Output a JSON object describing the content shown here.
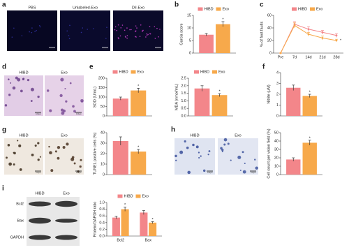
{
  "panel_labels": [
    "a",
    "b",
    "c",
    "d",
    "e",
    "f",
    "g",
    "h",
    "i"
  ],
  "image_captions": {
    "a": [
      "PBS",
      "Unlabeled-Exo",
      "DiI-Exo"
    ],
    "d": [
      "HIBD",
      "Exo"
    ],
    "g": [
      "HIBD",
      "Exo"
    ],
    "h": [
      "HIBD",
      "Exo"
    ]
  },
  "scale_bar": "100μm",
  "blot": {
    "samples": [
      "HIBD",
      "Exo"
    ],
    "proteins": [
      "Bcl2",
      "Bax",
      "GAPDH"
    ]
  },
  "chart_data": [
    {
      "type": "bar",
      "ylabel": "Garcia score",
      "categories": [
        null
      ],
      "legend": "top",
      "ylim": [
        0,
        15
      ],
      "yticks": [
        0,
        5,
        10,
        15
      ],
      "series": [
        {
          "name": "HIBD",
          "color": "#f3868a",
          "values": [
            7.3
          ],
          "errors": [
            0.5
          ]
        },
        {
          "name": "Exo",
          "color": "#f7a94b",
          "values": [
            11.5
          ],
          "errors": [
            1.0
          ],
          "annotations": [
            "*"
          ]
        }
      ]
    },
    {
      "type": "line",
      "ylabel": "% of foot faults",
      "categories": [
        "Pre",
        "7d",
        "14d",
        "21d",
        "28d"
      ],
      "legend": "top",
      "ylim": [
        0,
        60
      ],
      "yticks": [
        0,
        20,
        40,
        60
      ],
      "series": [
        {
          "name": "HIBD",
          "color": "#f3868a",
          "values": [
            0,
            46,
            38,
            33,
            28
          ],
          "errors": [
            0,
            4,
            4,
            3,
            3
          ]
        },
        {
          "name": "Exo",
          "color": "#f7a94b",
          "values": [
            0,
            44,
            30,
            24,
            20
          ],
          "errors": [
            0,
            4,
            3,
            3,
            2
          ],
          "annotations": [
            null,
            null,
            null,
            null,
            "*"
          ]
        }
      ]
    },
    {
      "type": "bar",
      "ylabel": "SOD (U/mL)",
      "categories": [
        null
      ],
      "legend": "top",
      "ylim": [
        0,
        200
      ],
      "yticks": [
        0,
        50,
        100,
        150,
        200
      ],
      "series": [
        {
          "name": "HIBD",
          "color": "#f3868a",
          "values": [
            92
          ],
          "errors": [
            8
          ]
        },
        {
          "name": "Exo",
          "color": "#f7a94b",
          "values": [
            135
          ],
          "errors": [
            12
          ],
          "annotations": [
            "*"
          ]
        }
      ]
    },
    {
      "type": "bar",
      "ylabel": "MDA (nmol/mL)",
      "categories": [
        null
      ],
      "legend": "top",
      "ylim": [
        0,
        2.5
      ],
      "yticks": [
        {
          "value": 0,
          "label": "0.0"
        },
        {
          "value": 0.5,
          "label": "0.5"
        },
        {
          "value": 1,
          "label": "1.0"
        },
        {
          "value": 1.5,
          "label": "1.5"
        },
        {
          "value": 2,
          "label": "2.0"
        },
        {
          "value": 2.5,
          "label": "2.5"
        }
      ],
      "series": [
        {
          "name": "HIBD",
          "color": "#f3868a",
          "values": [
            1.82
          ],
          "errors": [
            0.18
          ]
        },
        {
          "name": "Exo",
          "color": "#f7a94b",
          "values": [
            1.38
          ],
          "errors": [
            0.1
          ],
          "annotations": [
            "*"
          ]
        }
      ]
    },
    {
      "type": "bar",
      "ylabel": "Nitrite (μM)",
      "categories": [
        null
      ],
      "ylim": [
        0,
        4
      ],
      "yticks": [
        0,
        1,
        2,
        3,
        4
      ],
      "series": [
        {
          "name": "HIBD",
          "color": "#f3868a",
          "values": [
            2.6
          ],
          "errors": [
            0.25
          ]
        },
        {
          "name": "Exo",
          "color": "#f7a94b",
          "values": [
            1.85
          ],
          "errors": [
            0.15
          ],
          "annotations": [
            "*"
          ]
        }
      ]
    },
    {
      "type": "bar",
      "ylabel": "TUNEL positive cells (%)",
      "categories": [
        null
      ],
      "ylim": [
        0,
        40
      ],
      "yticks": [
        0,
        10,
        20,
        30,
        40
      ],
      "series": [
        {
          "name": "HIBD",
          "color": "#f3868a",
          "values": [
            32
          ],
          "errors": [
            4
          ]
        },
        {
          "name": "Exo",
          "color": "#f7a94b",
          "values": [
            22
          ],
          "errors": [
            2
          ],
          "annotations": [
            "*"
          ]
        }
      ]
    },
    {
      "type": "bar",
      "ylabel": "Cell count per vision field (%)",
      "categories": [
        null
      ],
      "ylim": [
        0,
        50
      ],
      "yticks": [
        0,
        10,
        20,
        30,
        40,
        50
      ],
      "series": [
        {
          "name": "HIBD",
          "color": "#f3868a",
          "values": [
            18
          ],
          "errors": [
            2
          ]
        },
        {
          "name": "Exo",
          "color": "#f7a94b",
          "values": [
            38
          ],
          "errors": [
            3
          ],
          "annotations": [
            "*"
          ]
        }
      ]
    },
    {
      "type": "bar",
      "ylabel": "Protein/GAPDH ratio",
      "categories": [
        "Bcl2",
        "Bax"
      ],
      "legend": "top",
      "ylim": [
        0,
        1
      ],
      "yticks": [
        {
          "value": 0,
          "label": "0.0"
        },
        {
          "value": 0.2,
          "label": "0.2"
        },
        {
          "value": 0.4,
          "label": "0.4"
        },
        {
          "value": 0.6,
          "label": "0.6"
        },
        {
          "value": 0.8,
          "label": "0.8"
        },
        {
          "value": 1,
          "label": "1.0"
        }
      ],
      "series": [
        {
          "name": "HIBD",
          "color": "#f3868a",
          "values": [
            0.55,
            0.7
          ],
          "errors": [
            0.04,
            0.06
          ]
        },
        {
          "name": "Exo",
          "color": "#f7a94b",
          "values": [
            0.8,
            0.4
          ],
          "errors": [
            0.06,
            0.03
          ],
          "annotations": [
            "*",
            "*"
          ]
        }
      ]
    }
  ]
}
